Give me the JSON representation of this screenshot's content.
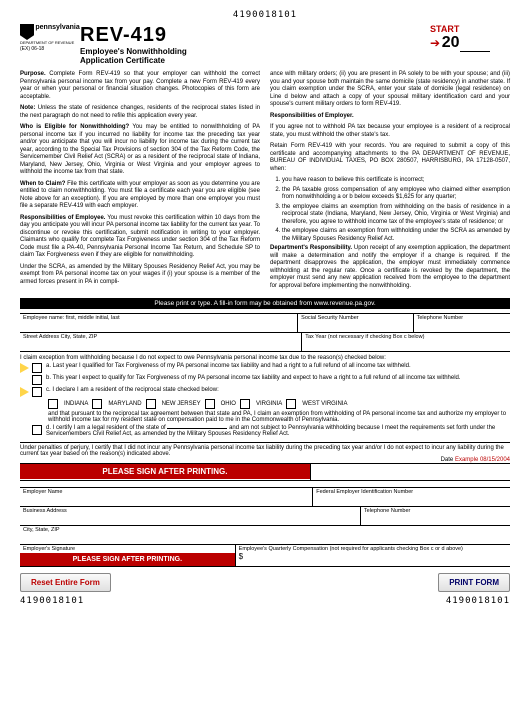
{
  "barcode": "4190018101",
  "logo": {
    "state": "pennsylvania",
    "dept": "DEPARTMENT OF REVENUE",
    "rev": "(EX) 06-18"
  },
  "form_number": "REV-419",
  "form_title1": "Employee's Nonwithholding",
  "form_title2": "Application Certificate",
  "start": "START",
  "year_prefix": "20",
  "left": {
    "p1": "<b>Purpose.</b> Complete Form REV-419 so that your employer can withhold the correct Pennsylvania personal income tax from your pay. Complete a new Form REV-419 every year or when your personal or financial situation changes. Photocopies of this form are acceptable.",
    "p2": "<b>Note:</b> Unless the state of residence changes, residents of the reciprocal states listed in the next paragraph do not need to refile this application every year.",
    "p3": "<b>Who is Eligible for Nonwithholding?</b> You may be entitled to nonwith­holding of PA personal income tax if you incurred no liability for income tax the preceding tax year and/or you anticipate that you will incur no liability for income tax during the current tax year, according to the Special Tax Provisions of section 304 of the Tax Reform Code, the Servicemember Civil Relief Act (SCRA) or as a resident of the reciprocal state of Indiana, Maryland, New Jersey, Ohio, Virginia or West Virginia and your employer agrees to withhold the income tax from that state.",
    "p4": "<b>When to Claim?</b> File this certificate with your employer as soon as you determine you are entitled to claim nonwithholding. You must file a certificate each year you are eligible (see Note above for an exception). If you are employed by more than one employer you must file a separate REV-419 with each employer.",
    "p5": "<b>Responsibilities of Employee.</b> You must revoke this certification within 10 days from the day you anticipate you will incur PA personal income tax liability for the current tax year. To discontinue or revoke this certification, submit notification in writing to your employer. Claimants who qualify for complete Tax Forgiveness under section 304 of the Tax Reform Code must file a PA-40, Pennsylvania Personal Income Tax Return, and Schedule SP to claim Tax Forgiveness even if they are eligible for nonwithholding.",
    "p6": "Under the SCRA, as amended by the Military Spouses Residency Relief Act, you may be exempt from PA personal income tax on your wages if (i) your spouse is a member of the armed forces present in PA in compli-"
  },
  "right": {
    "p1": "ance with military orders; (ii) you are present in PA solely to be with your spouse; and (iii) you and your spouse both maintain the same domicile (state residency) in another state. If you claim exemption under the SCRA, enter your state of domicile (legal residence) on Line d below and attach a copy of your spousal military identification card and your spouse's current military orders to form REV-419.",
    "h1": "Responsibilities of Employer.",
    "p2": "If you agree not to withhold PA tax because your employee is a resident of a reciprocal state, you must withhold the other state's tax.",
    "p3": "Retain Form REV-419 with your records. You are required to submit a copy of this certificate and accompanying attachments to the PA DEPARTMENT OF REVENUE, BUREAU OF INDIVIDUAL TAXES, PO BOX 280507, HARRISBURG, PA 17128-0507, when:",
    "li1": "you have reason to believe this certificate is incorrect;",
    "li2": "the PA taxable gross compensation of any employee who claimed either exemption from nonwithholding a or b below exceeds $1,625 for any quarter;",
    "li3": "the employee claims an exemption from withholding on the basis of residence in a reciprocal state (Indiana, Maryland, New Jersey, Ohio, Virginia or West Virginia) and therefore, you agree to withhold income tax of the employee's state of residence; or",
    "li4": "the employee claims an exemption from withholding under the SCRA as amended by the Military Spouses Residency Relief Act.",
    "p4": "<b>Department's Responsibility.</b> Upon receipt of any exemption application, the department will make a determination and notify the employer if a change is required. If the department disapproves the application, the employer must immediately commence withholding at the regular rate. Once a certificate is revoked by the department, the employer must send any new application received from the employee to the department for approval before implementing the nonwithholding."
  },
  "blackbar": "Please print or type. A fill-in form may be obtained from www.revenue.pa.gov.",
  "fields": {
    "name": "Employee name: first, middle initial, last",
    "ssn": "Social Security Number",
    "phone": "Telephone Number",
    "addr": "Street Address City, State, ZIP",
    "taxyear": "Tax Year (not necessary if checking Box c below)"
  },
  "claim_intro": "I claim exception from withholding because I do not expect to owe Pennsylvania personal income tax due to the reason(s) checked below:",
  "a": "a.  Last year I qualified for Tax Forgiveness of my PA personal income tax liability and had a right to a full refund of all income tax withheld.",
  "b": "b.  This year I expect to qualify for Tax Forgiveness of my PA personal income tax liability and expect to have a right to a full refund of all income tax withheld.",
  "c": "c.  I declare I am a resident of the reciprocal state checked below:",
  "states": [
    "INDIANA",
    "MARYLAND",
    "NEW JERSEY",
    "OHIO",
    "VIRGINIA",
    "WEST VIRGINIA"
  ],
  "c_tail": "and that pursuant to the reciprocal tax agreement between that state and PA, I claim an exemption from withholding of PA personal income tax and authorize my employer to withhold income tax for my resident state on compensation paid to me in the Commonwealth of Pennsylvania.",
  "d1": "d.  I certify I am a legal resident of the state of",
  "d2": "and am not subject to Pennsylvania withholding because I meet the requirements set forth under the Servicemembers Civil Relief Act, as amended by the Military Spouses Residency Relief Act.",
  "perjury": "Under penalties of perjury, I certify that I did not incur any Pennsylvania personal income tax liability during the preceding tax year and/or I do not expect to incur any liability during the current tax year based on the reason(s) indicated above.",
  "date_label": "Date",
  "date_example": "Example 08/15/2004",
  "redbar": "PLEASE SIGN AFTER PRINTING.",
  "emp_name": "Employer Name",
  "fein": "Federal Employer Identification Number",
  "biz_addr": "Business Address",
  "phone2": "Telephone Number",
  "csz": "City, State, ZIP",
  "emp_sig_label": "Employer's Signature",
  "qcomp": "Employee's Quarterly Compensation (not required for applicants checking Box c or d above)",
  "dollar": "$",
  "btn_reset": "Reset Entire Form",
  "btn_print": "PRINT FORM",
  "emp_sig_block": "Employee Signature"
}
